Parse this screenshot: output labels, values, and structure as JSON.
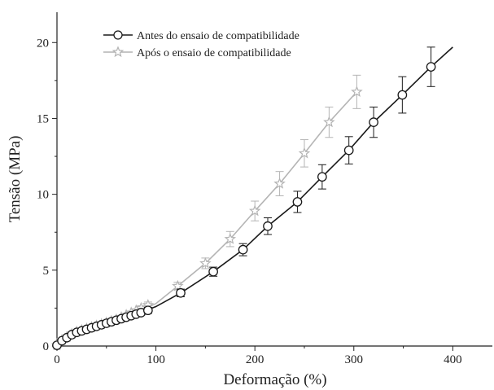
{
  "chart_data": {
    "type": "line",
    "title": "",
    "xlabel": "Deformação (%)",
    "ylabel": "Tensão (MPa)",
    "xlim": [
      0,
      440
    ],
    "ylim": [
      0,
      22
    ],
    "x_ticks": [
      0,
      100,
      200,
      300,
      400
    ],
    "y_ticks": [
      0,
      5,
      10,
      15,
      20
    ],
    "grid": false,
    "legend_position": "top-left",
    "series": [
      {
        "name": "Antes do ensaio de compatibilidade",
        "color": "#1a1a1a",
        "marker": "circle",
        "curve_x": [
          0,
          10,
          20,
          30,
          40,
          50,
          60,
          70,
          80,
          90,
          100,
          125,
          158,
          188,
          213,
          243,
          268,
          295,
          320,
          349,
          378,
          400
        ],
        "curve_y": [
          0,
          0.6,
          0.9,
          1.15,
          1.35,
          1.55,
          1.75,
          1.95,
          2.15,
          2.35,
          2.6,
          3.5,
          4.9,
          6.35,
          7.9,
          9.5,
          11.15,
          12.9,
          14.75,
          16.55,
          18.4,
          19.7
        ],
        "points": [
          {
            "x": 0,
            "y": 0.05,
            "err": 0
          },
          {
            "x": 5,
            "y": 0.35,
            "err": 0
          },
          {
            "x": 10,
            "y": 0.55,
            "err": 0
          },
          {
            "x": 15,
            "y": 0.75,
            "err": 0
          },
          {
            "x": 20,
            "y": 0.9,
            "err": 0
          },
          {
            "x": 25,
            "y": 1.0,
            "err": 0
          },
          {
            "x": 30,
            "y": 1.1,
            "err": 0
          },
          {
            "x": 35,
            "y": 1.2,
            "err": 0
          },
          {
            "x": 40,
            "y": 1.3,
            "err": 0
          },
          {
            "x": 45,
            "y": 1.4,
            "err": 0
          },
          {
            "x": 50,
            "y": 1.5,
            "err": 0
          },
          {
            "x": 55,
            "y": 1.6,
            "err": 0
          },
          {
            "x": 60,
            "y": 1.7,
            "err": 0
          },
          {
            "x": 65,
            "y": 1.8,
            "err": 0
          },
          {
            "x": 70,
            "y": 1.9,
            "err": 0
          },
          {
            "x": 75,
            "y": 2.0,
            "err": 0
          },
          {
            "x": 80,
            "y": 2.1,
            "err": 0
          },
          {
            "x": 85,
            "y": 2.2,
            "err": 0.15
          },
          {
            "x": 92,
            "y": 2.35,
            "err": 0.2
          },
          {
            "x": 125,
            "y": 3.5,
            "err": 0.25
          },
          {
            "x": 158,
            "y": 4.9,
            "err": 0.3
          },
          {
            "x": 188,
            "y": 6.35,
            "err": 0.4
          },
          {
            "x": 213,
            "y": 7.9,
            "err": 0.55
          },
          {
            "x": 243,
            "y": 9.5,
            "err": 0.7
          },
          {
            "x": 268,
            "y": 11.15,
            "err": 0.8
          },
          {
            "x": 295,
            "y": 12.9,
            "err": 0.9
          },
          {
            "x": 320,
            "y": 14.75,
            "err": 1.0
          },
          {
            "x": 349,
            "y": 16.55,
            "err": 1.2
          },
          {
            "x": 378,
            "y": 18.4,
            "err": 1.3
          }
        ]
      },
      {
        "name": "Após o ensaio de compatibilidade",
        "color": "#b4b4b4",
        "marker": "star",
        "curve_x": [
          0,
          10,
          20,
          30,
          40,
          50,
          60,
          70,
          80,
          90,
          100,
          122,
          150,
          175,
          200,
          225,
          250,
          275,
          303
        ],
        "curve_y": [
          0,
          0.6,
          0.9,
          1.15,
          1.4,
          1.6,
          1.8,
          2.0,
          2.25,
          2.5,
          2.8,
          3.95,
          5.45,
          7.05,
          8.9,
          10.7,
          12.7,
          14.75,
          16.75
        ],
        "points": [
          {
            "x": 0,
            "y": 0.05,
            "err": 0
          },
          {
            "x": 5,
            "y": 0.4,
            "err": 0
          },
          {
            "x": 10,
            "y": 0.6,
            "err": 0
          },
          {
            "x": 15,
            "y": 0.8,
            "err": 0
          },
          {
            "x": 20,
            "y": 0.95,
            "err": 0
          },
          {
            "x": 25,
            "y": 1.05,
            "err": 0
          },
          {
            "x": 30,
            "y": 1.15,
            "err": 0
          },
          {
            "x": 35,
            "y": 1.25,
            "err": 0
          },
          {
            "x": 40,
            "y": 1.35,
            "err": 0
          },
          {
            "x": 45,
            "y": 1.45,
            "err": 0
          },
          {
            "x": 50,
            "y": 1.55,
            "err": 0
          },
          {
            "x": 55,
            "y": 1.65,
            "err": 0
          },
          {
            "x": 60,
            "y": 1.75,
            "err": 0
          },
          {
            "x": 65,
            "y": 1.9,
            "err": 0
          },
          {
            "x": 70,
            "y": 2.05,
            "err": 0
          },
          {
            "x": 75,
            "y": 2.2,
            "err": 0
          },
          {
            "x": 80,
            "y": 2.35,
            "err": 0
          },
          {
            "x": 85,
            "y": 2.5,
            "err": 0.15
          },
          {
            "x": 92,
            "y": 2.7,
            "err": 0.2
          },
          {
            "x": 122,
            "y": 3.95,
            "err": 0.25
          },
          {
            "x": 150,
            "y": 5.45,
            "err": 0.35
          },
          {
            "x": 175,
            "y": 7.05,
            "err": 0.5
          },
          {
            "x": 200,
            "y": 8.9,
            "err": 0.65
          },
          {
            "x": 225,
            "y": 10.7,
            "err": 0.8
          },
          {
            "x": 250,
            "y": 12.7,
            "err": 0.9
          },
          {
            "x": 275,
            "y": 14.75,
            "err": 1.0
          },
          {
            "x": 303,
            "y": 16.75,
            "err": 1.1
          }
        ]
      }
    ]
  }
}
